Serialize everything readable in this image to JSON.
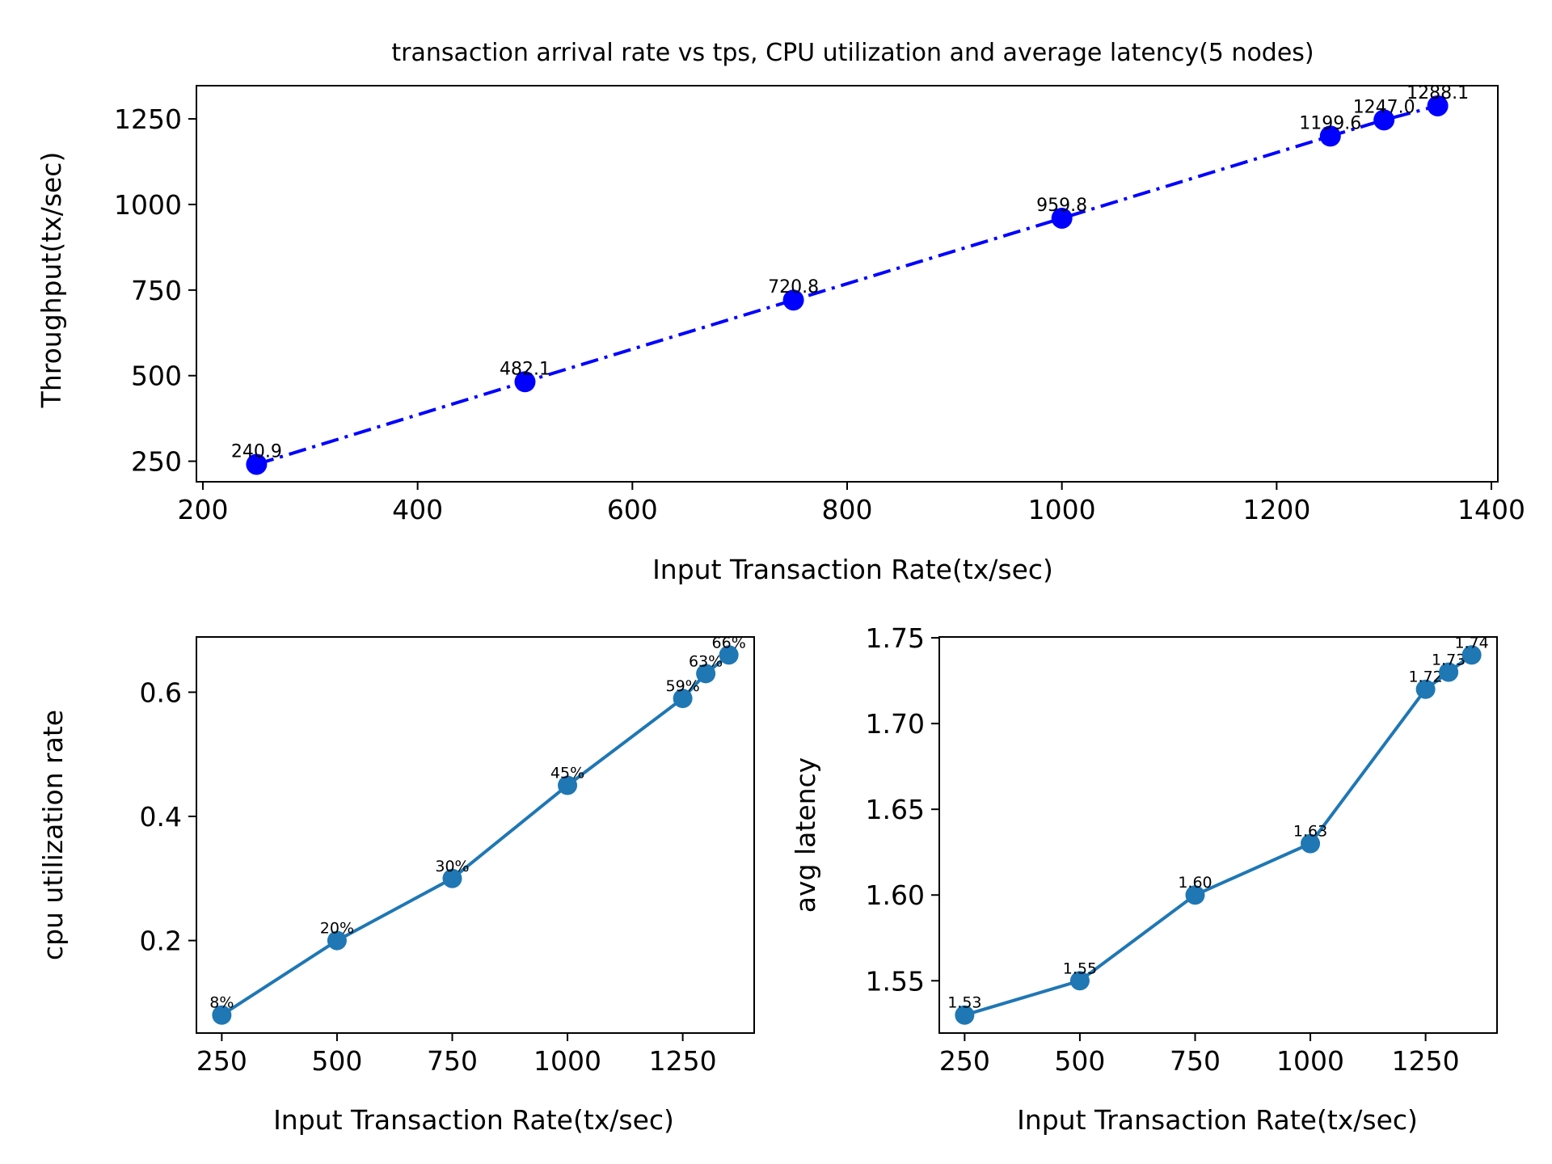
{
  "chart_data": [
    {
      "type": "line",
      "title": "transaction arrival rate vs tps, CPU utilization and average latency(5 nodes)",
      "xlabel": "Input Transaction Rate(tx/sec)",
      "ylabel": "Throughput(tx/sec)",
      "xlim": [
        194,
        1406
      ],
      "ylim": [
        190,
        1347
      ],
      "xticks": [
        200,
        400,
        600,
        800,
        1000,
        1200,
        1400
      ],
      "yticks": [
        250,
        500,
        750,
        1000,
        1250
      ],
      "grid": false,
      "color": "#0000ff",
      "line_style": "dashdot",
      "series": [
        {
          "name": "Throughput",
          "x": [
            250,
            500,
            750,
            1000,
            1250,
            1300,
            1350
          ],
          "values": [
            240.9,
            482.1,
            720.8,
            959.8,
            1199.6,
            1247.0,
            1288.1
          ],
          "labels": [
            "240.9",
            "482.1",
            "720.8",
            "959.8",
            "1199.6",
            "1247.0",
            "1288.1"
          ]
        }
      ]
    },
    {
      "type": "line",
      "title": "",
      "xlabel": "Input Transaction Rate(tx/sec)",
      "ylabel": "cpu utilization rate",
      "xlim": [
        195,
        1405
      ],
      "ylim": [
        0.051,
        0.689
      ],
      "xticks": [
        250,
        500,
        750,
        1000,
        1250
      ],
      "yticks": [
        0.2,
        0.4,
        0.6
      ],
      "ytick_labels": [
        "0.2",
        "0.4",
        "0.6"
      ],
      "grid": false,
      "color": "#1f77b4",
      "line_style": "solid",
      "series": [
        {
          "name": "cpu utilization",
          "x": [
            250,
            500,
            750,
            1000,
            1250,
            1300,
            1350
          ],
          "values": [
            0.08,
            0.2,
            0.3,
            0.45,
            0.59,
            0.63,
            0.66
          ],
          "labels": [
            "8%",
            "20%",
            "30%",
            "45%",
            "59%",
            "63%",
            "66%"
          ]
        }
      ]
    },
    {
      "type": "line",
      "title": "",
      "xlabel": "Input Transaction Rate(tx/sec)",
      "ylabel": "avg latency",
      "xlim": [
        195,
        1405
      ],
      "ylim": [
        1.5195,
        1.7505
      ],
      "xticks": [
        250,
        500,
        750,
        1000,
        1250
      ],
      "yticks": [
        1.55,
        1.6,
        1.65,
        1.7,
        1.75
      ],
      "ytick_labels": [
        "1.55",
        "1.60",
        "1.65",
        "1.70",
        "1.75"
      ],
      "grid": false,
      "color": "#1f77b4",
      "line_style": "solid",
      "series": [
        {
          "name": "avg latency",
          "x": [
            250,
            500,
            750,
            1000,
            1250,
            1300,
            1350
          ],
          "values": [
            1.53,
            1.55,
            1.6,
            1.63,
            1.72,
            1.73,
            1.74
          ],
          "labels": [
            "1.53",
            "1.55",
            "1.60",
            "1.63",
            "1.72",
            "1.73",
            "1.74"
          ]
        }
      ]
    }
  ]
}
